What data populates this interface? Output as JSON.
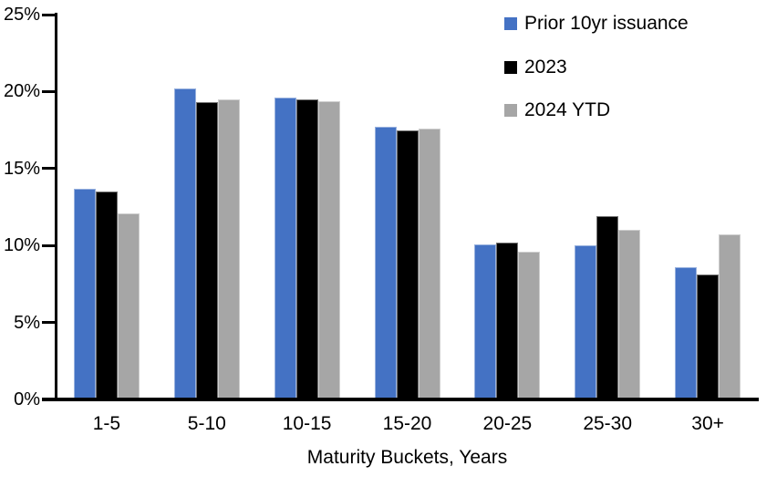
{
  "chart_data": {
    "type": "bar",
    "title": "",
    "xlabel": "Maturity Buckets, Years",
    "ylabel": "",
    "categories": [
      "1-5",
      "5-10",
      "10-15",
      "15-20",
      "20-25",
      "25-30",
      "30+"
    ],
    "series": [
      {
        "name": "Prior 10yr issuance",
        "color": "#4472C4",
        "values": [
          13.7,
          20.2,
          19.6,
          17.7,
          10.1,
          10.0,
          8.6
        ]
      },
      {
        "name": "2023",
        "color": "#000000",
        "values": [
          13.5,
          19.3,
          19.5,
          17.5,
          10.2,
          11.9,
          8.1
        ]
      },
      {
        "name": "2024 YTD",
        "color": "#A6A6A6",
        "values": [
          12.1,
          19.5,
          19.4,
          17.6,
          9.6,
          11.0,
          10.7
        ]
      }
    ],
    "ylim": [
      0,
      25
    ],
    "y_tick_labels": [
      "0%",
      "5%",
      "10%",
      "15%",
      "20%",
      "25%"
    ],
    "grid": false,
    "legend_position": "top-right",
    "axis_color": "#000000",
    "background_color": "#FFFFFF"
  }
}
